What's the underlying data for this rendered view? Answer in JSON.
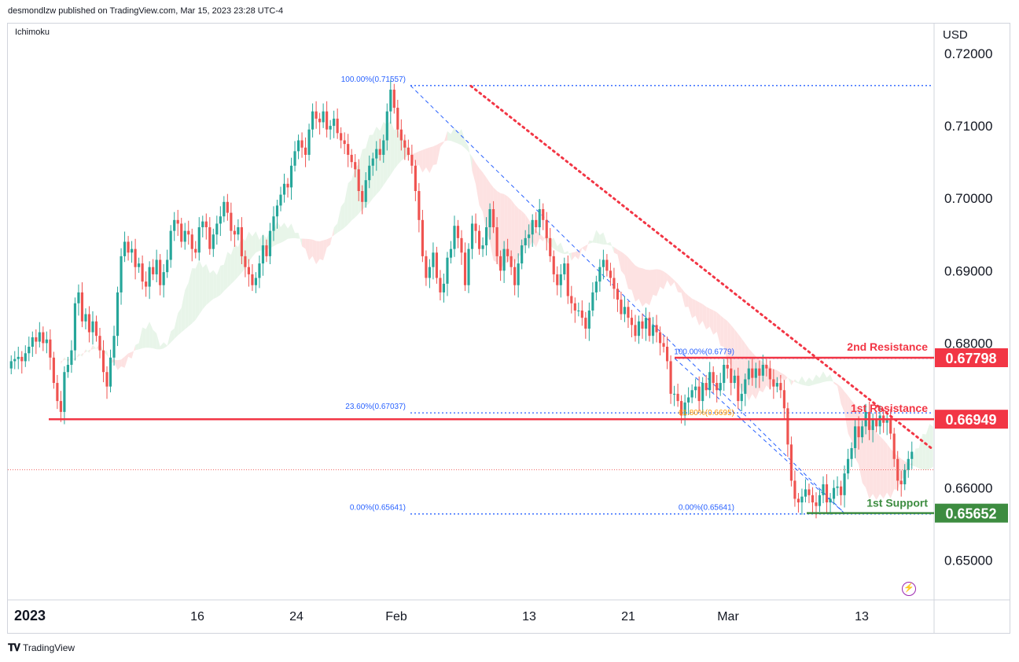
{
  "header": {
    "publisher": "desmondlzw published on TradingView.com, Mar 15, 2023 23:28 UTC-4"
  },
  "indicator": "Ichimoku",
  "currency": "USD",
  "footer": {
    "brand": "TradingView"
  },
  "icons": {
    "logo": "tradingview-logo-icon",
    "flash": "lightning-icon"
  },
  "colors": {
    "up": "#26a69a",
    "down": "#ef5350",
    "resistance": "#f23645",
    "support": "#3d8c40",
    "fib": "#2962ff",
    "fib_golden": "#ff9800",
    "cloud_bull": "#e8f5e9",
    "cloud_bear": "#fde2e2",
    "trend": "#f23645",
    "axis_text": "#131722",
    "grid": "#d1d4dc"
  },
  "chart_data": {
    "type": "candlestick",
    "y_axis": {
      "min": 0.645,
      "max": 0.723,
      "ticks": [
        "0.72000",
        "0.71000",
        "0.70000",
        "0.69000",
        "0.68000",
        "0.66000",
        "0.65000"
      ],
      "tick_values": [
        0.72,
        0.71,
        0.7,
        0.69,
        0.68,
        0.66,
        0.65
      ]
    },
    "x_axis": {
      "labels": [
        "2023",
        "16",
        "24",
        "Feb",
        "13",
        "21",
        "Mar",
        "13"
      ]
    },
    "levels": [
      {
        "name": "2nd Resistance",
        "value": 0.67798,
        "label": "0.67798",
        "color": "#f23645"
      },
      {
        "name": "1st Resistance",
        "value": 0.66949,
        "label": "0.66949",
        "color": "#f23645"
      },
      {
        "name": "1st Support",
        "value": 0.65652,
        "label": "0.65652",
        "color": "#3d8c40"
      }
    ],
    "fib_labels": [
      {
        "text": "100.00%(0.71557)",
        "value": 0.71557
      },
      {
        "text": "23.60%(0.67037)",
        "value": 0.67037
      },
      {
        "text": "0.00%(0.65641)",
        "value": 0.65641
      },
      {
        "text": "100.00%(0.6779)",
        "value": 0.6779
      },
      {
        "text": "61.80%(0.6695)",
        "value": 0.6695
      },
      {
        "text": "0.00%(0.65641)",
        "value": 0.65641
      }
    ],
    "current_price": 0.6625,
    "closes": [
      0.6775,
      0.6778,
      0.6781,
      0.6775,
      0.6786,
      0.6795,
      0.6808,
      0.6802,
      0.6815,
      0.68,
      0.6805,
      0.678,
      0.6745,
      0.672,
      0.6705,
      0.676,
      0.677,
      0.679,
      0.6855,
      0.687,
      0.683,
      0.684,
      0.6815,
      0.683,
      0.681,
      0.679,
      0.676,
      0.674,
      0.678,
      0.681,
      0.687,
      0.692,
      0.694,
      0.6925,
      0.693,
      0.6905,
      0.691,
      0.6885,
      0.6878,
      0.6905,
      0.6895,
      0.6915,
      0.688,
      0.6898,
      0.6915,
      0.6955,
      0.697,
      0.6965,
      0.694,
      0.6955,
      0.695,
      0.693,
      0.6925,
      0.696,
      0.6968,
      0.696,
      0.693,
      0.695,
      0.6965,
      0.6975,
      0.6995,
      0.698,
      0.6955,
      0.695,
      0.696,
      0.692,
      0.6905,
      0.6895,
      0.688,
      0.689,
      0.691,
      0.6935,
      0.692,
      0.6955,
      0.6975,
      0.699,
      0.7005,
      0.702,
      0.7015,
      0.7045,
      0.7065,
      0.708,
      0.707,
      0.706,
      0.7095,
      0.712,
      0.711,
      0.7105,
      0.712,
      0.7095,
      0.71,
      0.711,
      0.709,
      0.708,
      0.7075,
      0.706,
      0.705,
      0.704,
      0.701,
      0.6995,
      0.7025,
      0.7045,
      0.7055,
      0.7068,
      0.706,
      0.708,
      0.712,
      0.715,
      0.7125,
      0.7095,
      0.708,
      0.707,
      0.706,
      0.7045,
      0.701,
      0.697,
      0.692,
      0.689,
      0.6905,
      0.6925,
      0.689,
      0.687,
      0.6882,
      0.6918,
      0.693,
      0.6962,
      0.6945,
      0.6925,
      0.688,
      0.693,
      0.6965,
      0.6955,
      0.693,
      0.6935,
      0.696,
      0.6985,
      0.696,
      0.692,
      0.69,
      0.693,
      0.692,
      0.6905,
      0.688,
      0.691,
      0.6935,
      0.6945,
      0.695,
      0.697,
      0.696,
      0.6985,
      0.697,
      0.6945,
      0.692,
      0.6895,
      0.688,
      0.6895,
      0.691,
      0.6865,
      0.6855,
      0.6845,
      0.6845,
      0.6835,
      0.682,
      0.6845,
      0.687,
      0.6885,
      0.6905,
      0.6915,
      0.69,
      0.689,
      0.6875,
      0.686,
      0.684,
      0.685,
      0.6835,
      0.6825,
      0.681,
      0.683,
      0.682,
      0.6835,
      0.681,
      0.6825,
      0.6815,
      0.68,
      0.6795,
      0.6775,
      0.673,
      0.673,
      0.672,
      0.67,
      0.6718,
      0.6725,
      0.6735,
      0.674,
      0.672,
      0.6745,
      0.6735,
      0.676,
      0.6745,
      0.6735,
      0.6745,
      0.677,
      0.6765,
      0.6745,
      0.6755,
      0.672,
      0.673,
      0.675,
      0.6765,
      0.6752,
      0.6765,
      0.6755,
      0.677,
      0.6765,
      0.675,
      0.674,
      0.6745,
      0.6735,
      0.671,
      0.666,
      0.661,
      0.6585,
      0.658,
      0.6588,
      0.6598,
      0.659,
      0.658,
      0.6575,
      0.659,
      0.6605,
      0.658,
      0.6585,
      0.66,
      0.6602,
      0.659,
      0.662,
      0.664,
      0.6655,
      0.6685,
      0.667,
      0.6685,
      0.6705,
      0.668,
      0.6695,
      0.6685,
      0.67,
      0.669,
      0.6695,
      0.6675,
      0.664,
      0.661,
      0.6605,
      0.6625,
      0.664,
      0.665
    ],
    "trendline": {
      "from": [
        0.7155,
        0.5
      ],
      "to": [
        0.6655,
        0.997
      ]
    },
    "series": [
      {
        "values": []
      }
    ]
  }
}
